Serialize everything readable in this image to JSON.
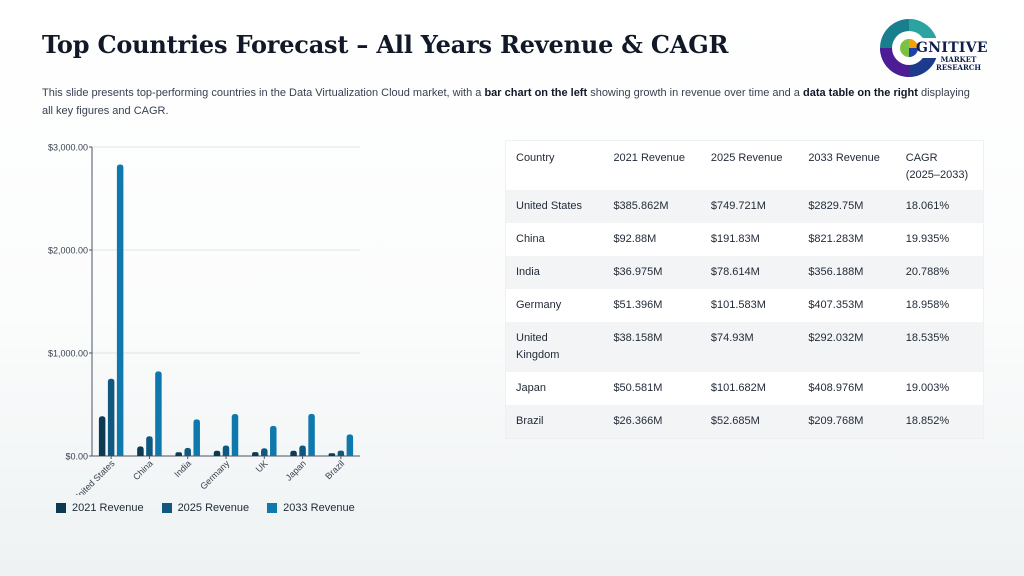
{
  "title": "Top Countries Forecast – All Years Revenue & CAGR",
  "description": {
    "p1": "This slide presents top-performing countries in the Data Virtualization Cloud market, with a ",
    "b1": "bar chart on the left",
    "p2": " showing growth in revenue over time and a ",
    "b2": "data table on the right",
    "p3": " displaying all key figures and CAGR."
  },
  "logo": {
    "word": "GNITIVE",
    "sub_line1": "MARKET",
    "sub_line2": "RESEARCH"
  },
  "colors": {
    "series2021": "#0b3a52",
    "series2025": "#10587f",
    "series2033": "#0f79ad",
    "axis": "#4b5563",
    "grid": "#dfe3e6"
  },
  "chart_data": {
    "type": "bar",
    "categories": [
      "United States",
      "China",
      "India",
      "Germany",
      "UK",
      "Japan",
      "Brazil"
    ],
    "series": [
      {
        "name": "2021 Revenue",
        "values": [
          385.862,
          92.88,
          36.975,
          51.396,
          38.158,
          50.581,
          26.366
        ]
      },
      {
        "name": "2025 Revenue",
        "values": [
          749.721,
          191.83,
          78.614,
          101.583,
          74.93,
          101.682,
          52.685
        ]
      },
      {
        "name": "2033 Revenue",
        "values": [
          2829.75,
          821.283,
          356.188,
          407.353,
          292.032,
          408.976,
          209.768
        ]
      }
    ],
    "yticks": [
      "$0.00",
      "$1,000.00",
      "$2,000.00",
      "$3,000.00"
    ],
    "ylim": [
      0,
      3000
    ],
    "grid": true,
    "legend": "bottom"
  },
  "table": {
    "headers": [
      "Country",
      "2021 Revenue",
      "2025 Revenue",
      "2033 Revenue",
      "CAGR (2025–2033)"
    ],
    "rows": [
      [
        "United States",
        "$385.862M",
        "$749.721M",
        "$2829.75M",
        "18.061%"
      ],
      [
        "China",
        "$92.88M",
        "$191.83M",
        "$821.283M",
        "19.935%"
      ],
      [
        "India",
        "$36.975M",
        "$78.614M",
        "$356.188M",
        "20.788%"
      ],
      [
        "Germany",
        "$51.396M",
        "$101.583M",
        "$407.353M",
        "18.958%"
      ],
      [
        "United Kingdom",
        "$38.158M",
        "$74.93M",
        "$292.032M",
        "18.535%"
      ],
      [
        "Japan",
        "$50.581M",
        "$101.682M",
        "$408.976M",
        "19.003%"
      ],
      [
        "Brazil",
        "$26.366M",
        "$52.685M",
        "$209.768M",
        "18.852%"
      ]
    ]
  }
}
